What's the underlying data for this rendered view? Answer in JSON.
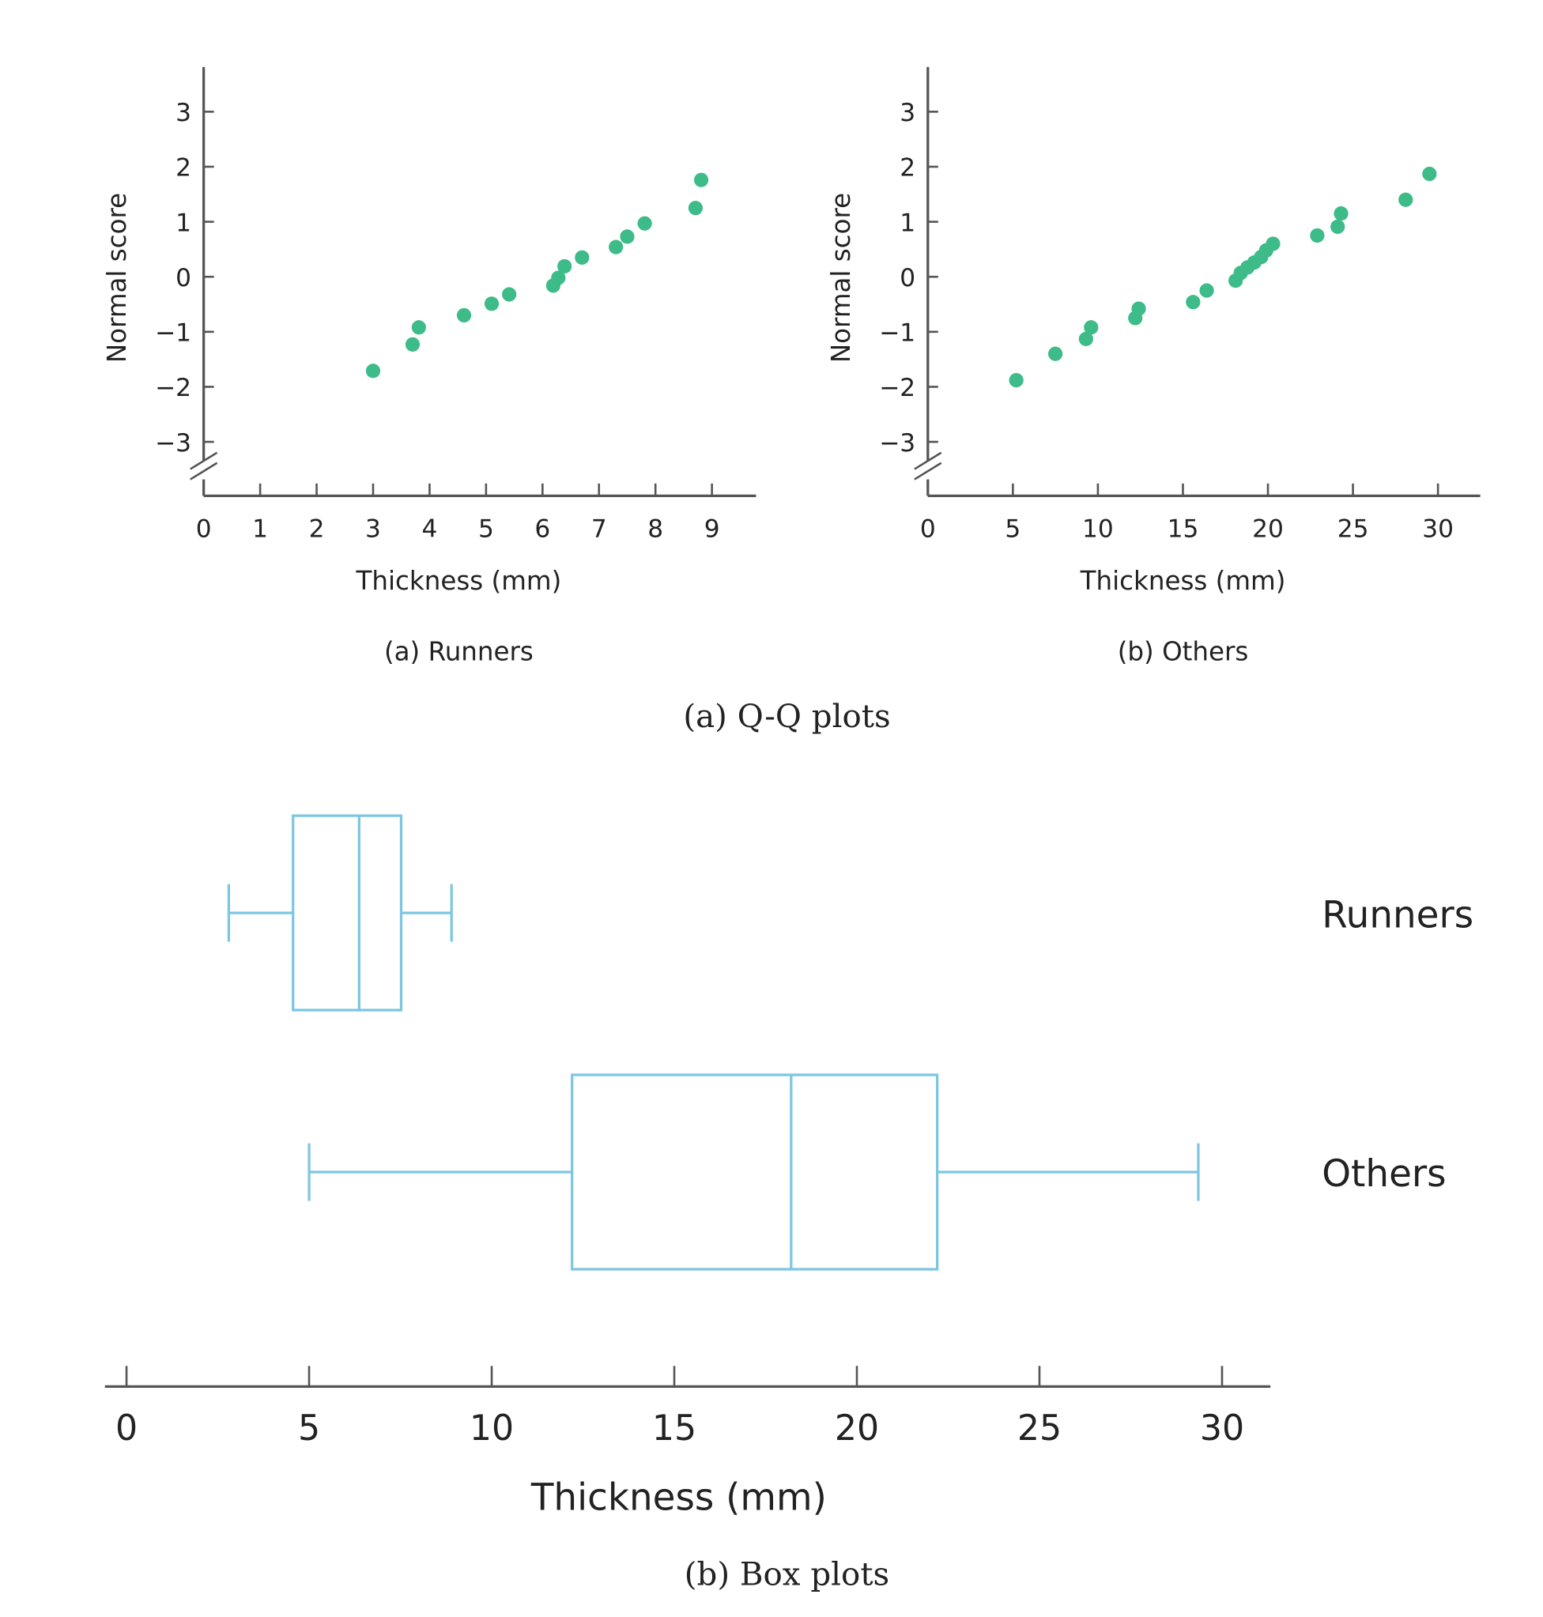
{
  "figure_captions": {
    "qq": "(a) Q-Q plots",
    "box": "(b) Box plots"
  },
  "colors": {
    "points": "#3dbb88",
    "boxes": "#7cc6e2",
    "axes": "#555555"
  },
  "chart_data": [
    {
      "type": "scatter",
      "title": "(a) Runners",
      "xlabel": "Thickness (mm)",
      "ylabel": "Normal score",
      "xlim": [
        0,
        9.8
      ],
      "ylim": [
        -3.5,
        3.8
      ],
      "xticks": [
        "0",
        "1",
        "2",
        "3",
        "4",
        "5",
        "6",
        "7",
        "8",
        "9"
      ],
      "yticks": [
        "3",
        "2",
        "1",
        "0",
        "−1",
        "−2",
        "−3"
      ],
      "axis_break": "y",
      "grid": false,
      "x": [
        3.0,
        3.7,
        3.81,
        4.61,
        5.1,
        5.41,
        6.19,
        6.28,
        6.39,
        6.7,
        7.3,
        7.5,
        7.81,
        8.71,
        8.81
      ],
      "y": [
        -1.71,
        -1.23,
        -0.92,
        -0.7,
        -0.49,
        -0.32,
        -0.16,
        -0.02,
        0.19,
        0.35,
        0.54,
        0.73,
        0.97,
        1.25,
        1.76
      ]
    },
    {
      "type": "scatter",
      "title": "(b) Others",
      "xlabel": "Thickness (mm)",
      "ylabel": "Normal score",
      "xlim": [
        0,
        32.5
      ],
      "ylim": [
        -3.5,
        3.8
      ],
      "xticks": [
        "0",
        "5",
        "10",
        "15",
        "20",
        "25",
        "30"
      ],
      "yticks": [
        "3",
        "2",
        "1",
        "0",
        "−1",
        "−2",
        "−3"
      ],
      "axis_break": "y",
      "grid": false,
      "x": [
        5.2,
        7.5,
        9.3,
        9.6,
        12.2,
        12.4,
        15.6,
        16.4,
        18.1,
        18.4,
        18.8,
        19.2,
        19.6,
        19.9,
        20.3,
        22.9,
        24.1,
        24.3,
        28.1,
        29.5
      ],
      "y": [
        -1.88,
        -1.4,
        -1.13,
        -0.92,
        -0.75,
        -0.58,
        -0.46,
        -0.25,
        -0.07,
        0.07,
        0.17,
        0.26,
        0.36,
        0.48,
        0.6,
        0.75,
        0.91,
        1.15,
        1.4,
        1.87
      ]
    },
    {
      "type": "box",
      "xlabel": "Thickness (mm)",
      "xlim": [
        -0.6,
        31.3
      ],
      "xticks": [
        "0",
        "5",
        "10",
        "15",
        "20",
        "25",
        "30"
      ],
      "grid": false,
      "series": [
        {
          "name": "Runners",
          "min": 2.8,
          "q1": 4.56,
          "median": 6.37,
          "q3": 7.52,
          "max": 8.9
        },
        {
          "name": "Others",
          "min": 5.0,
          "q1": 12.2,
          "median": 18.2,
          "q3": 22.2,
          "max": 29.35
        }
      ]
    }
  ]
}
